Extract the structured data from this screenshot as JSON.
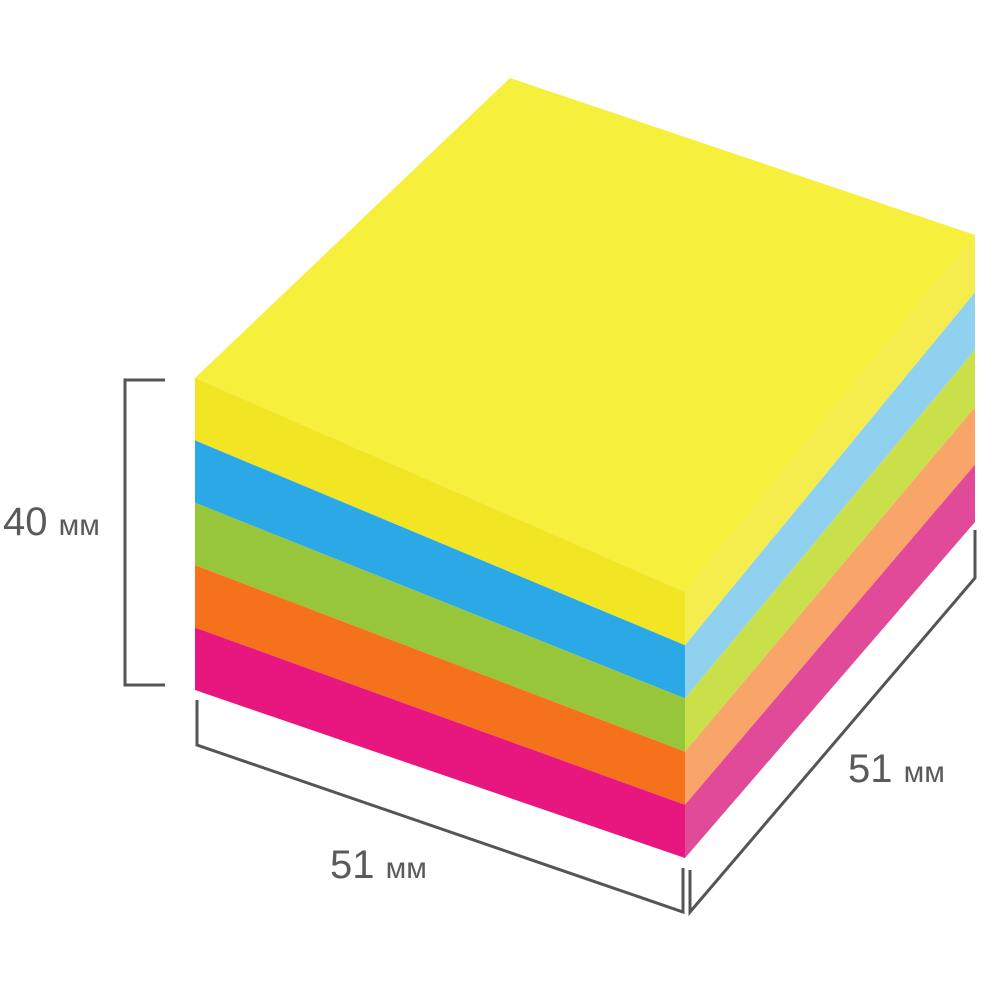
{
  "dimensions": {
    "height": {
      "value": "40",
      "unit": "мм"
    },
    "width": {
      "value": "51",
      "unit": "мм"
    },
    "depth": {
      "value": "51",
      "unit": "мм"
    }
  },
  "layers": [
    {
      "name": "yellow",
      "front": "#f2e524",
      "side": "#f5ec4e"
    },
    {
      "name": "blue",
      "front": "#2ba9e6",
      "side": "#90d1f0"
    },
    {
      "name": "green",
      "front": "#97c63a",
      "side": "#c9e04a"
    },
    {
      "name": "orange",
      "front": "#f6711c",
      "side": "#f9a468"
    },
    {
      "name": "pink",
      "front": "#e8177f",
      "side": "#e04a98"
    }
  ],
  "top_color": "#f6ef3c",
  "line_color": "#555555"
}
